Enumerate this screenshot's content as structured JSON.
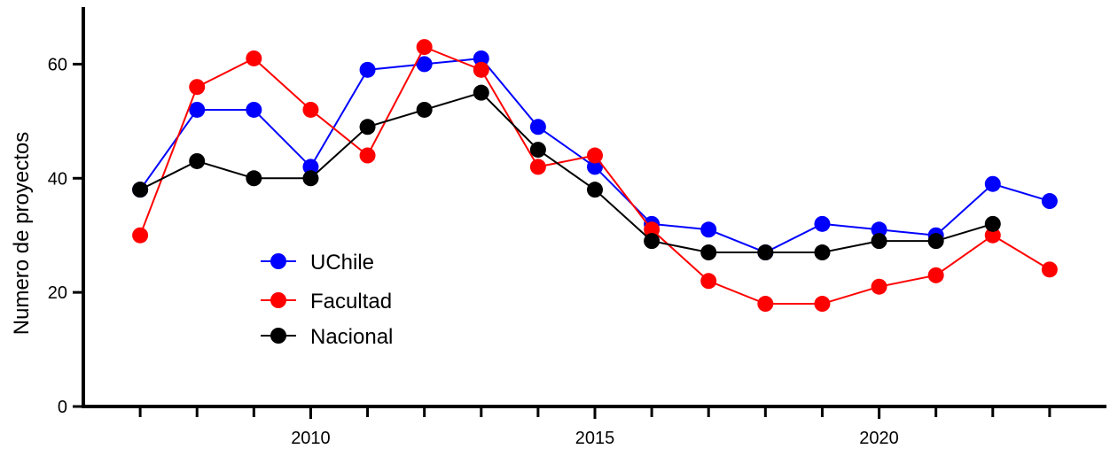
{
  "chart_data": {
    "type": "line",
    "title": "",
    "xlabel": "",
    "ylabel": "Numero de proyectos",
    "xlim": [
      2006,
      2024
    ],
    "ylim": [
      0,
      70
    ],
    "x_ticks": [
      2010,
      2015,
      2020
    ],
    "y_ticks": [
      0,
      20,
      40,
      60
    ],
    "grid": false,
    "legend_position": "center-left",
    "x": [
      2007,
      2008,
      2009,
      2010,
      2011,
      2012,
      2013,
      2014,
      2015,
      2016,
      2017,
      2018,
      2019,
      2020,
      2021,
      2022,
      2023
    ],
    "series": [
      {
        "name": "UChile",
        "color": "#0000ff",
        "values": [
          38,
          52,
          52,
          42,
          59,
          60,
          61,
          49,
          42,
          32,
          31,
          27,
          32,
          31,
          30,
          39,
          36
        ]
      },
      {
        "name": "Facultad",
        "color": "#ff0000",
        "values": [
          30,
          56,
          61,
          52,
          44,
          63,
          59,
          42,
          44,
          31,
          22,
          18,
          18,
          21,
          23,
          30,
          24
        ]
      },
      {
        "name": "Nacional",
        "color": "#000000",
        "values": [
          38,
          43,
          40,
          40,
          49,
          52,
          55,
          45,
          38,
          29,
          27,
          27,
          27,
          29,
          29,
          32,
          null
        ]
      }
    ]
  }
}
